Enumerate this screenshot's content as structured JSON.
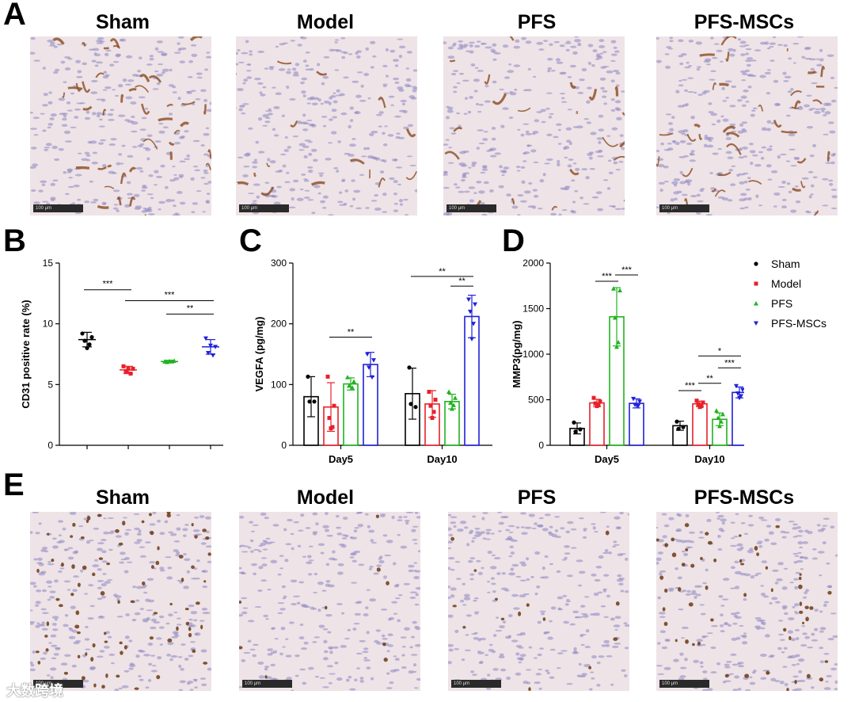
{
  "panels": {
    "A": "A",
    "B": "B",
    "C": "C",
    "D": "D",
    "E": "E"
  },
  "groups": [
    "Sham",
    "Model",
    "PFS",
    "PFS-MSCs"
  ],
  "scale_bar_label": "100 μm",
  "colors": {
    "Sham": "#000000",
    "Model": "#e8202a",
    "PFS": "#1fb31f",
    "PFS-MSCs": "#2020d8"
  },
  "chart_data": [
    {
      "id": "B",
      "type": "scatter",
      "ylabel": "CD31 positive rate (%)",
      "ylim": [
        0,
        15
      ],
      "yticks": [
        0,
        5,
        10,
        15
      ],
      "series": [
        {
          "name": "Sham",
          "mean": 8.7,
          "sd": 0.6,
          "points": [
            9.2,
            8.9,
            8.6,
            8.3,
            8.0
          ]
        },
        {
          "name": "Model",
          "mean": 6.2,
          "sd": 0.3,
          "points": [
            6.5,
            6.3,
            6.1,
            5.9,
            6.3
          ]
        },
        {
          "name": "PFS",
          "mean": 6.9,
          "sd": 0.1,
          "points": [
            6.9,
            6.95,
            6.85,
            6.9,
            6.92
          ]
        },
        {
          "name": "PFS-MSCs",
          "mean": 8.1,
          "sd": 0.6,
          "points": [
            8.8,
            8.1,
            7.6,
            7.4,
            8.2
          ]
        }
      ],
      "significance": [
        {
          "from": 0,
          "to": 1,
          "label": "***",
          "y": 12.8
        },
        {
          "from": 1,
          "to": 3,
          "label": "***",
          "y": 11.9
        },
        {
          "from": 2,
          "to": 3,
          "label": "**",
          "y": 10.8
        }
      ]
    },
    {
      "id": "C",
      "type": "bar",
      "ylabel": "VEGFA (pg/mg)",
      "ylim": [
        0,
        300
      ],
      "yticks": [
        0,
        100,
        200,
        300
      ],
      "categories": [
        "Day5",
        "Day10"
      ],
      "series": [
        {
          "name": "Sham",
          "values": [
            80,
            85
          ],
          "sd": [
            33,
            42
          ],
          "points": [
            [
              113,
              72,
              72
            ],
            [
              128,
              63,
              68
            ]
          ]
        },
        {
          "name": "Model",
          "values": [
            63,
            68
          ],
          "sd": [
            40,
            22
          ],
          "points": [
            [
              113,
              65,
              45,
              30,
              28
            ],
            [
              88,
              75,
              65,
              55,
              45
            ]
          ]
        },
        {
          "name": "PFS",
          "values": [
            101,
            72
          ],
          "sd": [
            10,
            12
          ],
          "points": [
            [
              112,
              105,
              98,
              95
            ],
            [
              88,
              78,
              70,
              66,
              60
            ]
          ]
        },
        {
          "name": "PFS-MSCs",
          "values": [
            133,
            212
          ],
          "sd": [
            20,
            35
          ],
          "points": [
            [
              150,
              140,
              128,
              112
            ],
            [
              240,
              232,
              220,
              200,
              175
            ]
          ]
        }
      ],
      "significance": [
        {
          "category": 0,
          "from": 1,
          "to": 3,
          "label": "**",
          "y": 178
        },
        {
          "category": 1,
          "from": 0,
          "to": 3,
          "label": "**",
          "y": 278
        },
        {
          "category": 1,
          "from": 2,
          "to": 3,
          "label": "**",
          "y": 262
        }
      ]
    },
    {
      "id": "D",
      "type": "bar",
      "ylabel": "MMP3(pg/mg)",
      "ylim": [
        0,
        2000
      ],
      "yticks": [
        0,
        500,
        1000,
        1500,
        2000
      ],
      "categories": [
        "Day5",
        "Day10"
      ],
      "series": [
        {
          "name": "Sham",
          "values": [
            185,
            215
          ],
          "sd": [
            60,
            50
          ],
          "points": [
            [
              250,
              175,
              150
            ],
            [
              260,
              200,
              180
            ]
          ]
        },
        {
          "name": "Model",
          "values": [
            465,
            455
          ],
          "sd": [
            40,
            30
          ],
          "points": [
            [
              520,
              480,
              460,
              440,
              430
            ],
            [
              490,
              470,
              450,
              430,
              420
            ]
          ]
        },
        {
          "name": "PFS",
          "values": [
            1410,
            285
          ],
          "sd": [
            320,
            70
          ],
          "points": [
            [
              1720,
              1700,
              1400,
              1130,
              1080
            ],
            [
              380,
              340,
              300,
              260,
              210
            ]
          ]
        },
        {
          "name": "PFS-MSCs",
          "values": [
            460,
            580
          ],
          "sd": [
            50,
            60
          ],
          "points": [
            [
              510,
              480,
              445,
              430
            ],
            [
              650,
              610,
              570,
              540,
              520
            ]
          ]
        }
      ],
      "significance": [
        {
          "category": 0,
          "from": 1,
          "to": 2,
          "label": "***",
          "y": 1800
        },
        {
          "category": 0,
          "from": 2,
          "to": 3,
          "label": "***",
          "y": 1870
        },
        {
          "category": 1,
          "from": 0,
          "to": 1,
          "label": "***",
          "y": 600
        },
        {
          "category": 1,
          "from": 1,
          "to": 2,
          "label": "**",
          "y": 680
        },
        {
          "category": 1,
          "from": 2,
          "to": 3,
          "label": "***",
          "y": 850
        },
        {
          "category": 1,
          "from": 1,
          "to": 3,
          "label": "*",
          "y": 980
        }
      ]
    }
  ],
  "legend": [
    "Sham",
    "Model",
    "PFS",
    "PFS-MSCs"
  ],
  "watermark": "大数跨境"
}
